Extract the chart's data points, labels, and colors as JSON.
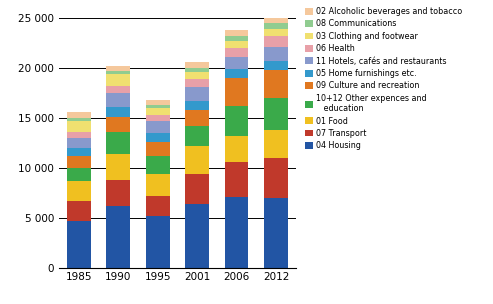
{
  "years": [
    "1985",
    "1990",
    "1995",
    "2001",
    "2006",
    "2012"
  ],
  "categories": [
    "04 Housing",
    "07 Transport",
    "01 Food",
    "10+12 Other expences and education",
    "09 Culture and recreation",
    "05 Home furnishings etc.",
    "11 Hotels, cafes and restaurants",
    "06 Health",
    "03 Clothing and footwear",
    "08 Communications",
    "02 Alcoholic beverages and tobacco"
  ],
  "legend_labels": [
    "02 Alcoholic beverages and tobacco",
    "08 Communications",
    "03 Clothing and footwear",
    "06 Health",
    "11 Hotels, cafés and restaurants",
    "05 Home furnishings etc.",
    "09 Culture and recreation",
    "10+12 Other expences and\n   education",
    "01 Food",
    "07 Transport",
    "04 Housing"
  ],
  "colors": [
    "#2255a4",
    "#c0392b",
    "#f0c020",
    "#3aaa4a",
    "#e07820",
    "#3399cc",
    "#8899cc",
    "#e8a0a8",
    "#f0e070",
    "#90cc90",
    "#f5c89c"
  ],
  "data": {
    "04 Housing": [
      4700,
      6200,
      5200,
      6400,
      7100,
      7000
    ],
    "07 Transport": [
      2000,
      2600,
      2000,
      3000,
      3500,
      4000
    ],
    "01 Food": [
      2000,
      2600,
      2200,
      2800,
      2600,
      2800
    ],
    "10+12 Other expences and education": [
      1300,
      2200,
      1800,
      2000,
      3000,
      3200
    ],
    "09 Culture and recreation": [
      1200,
      1500,
      1400,
      1600,
      2800,
      2800
    ],
    "05 Home furnishings etc.": [
      800,
      1000,
      900,
      900,
      900,
      900
    ],
    "11 Hotels, cafes and restaurants": [
      1000,
      1400,
      1200,
      1400,
      1200,
      1400
    ],
    "06 Health": [
      600,
      700,
      600,
      800,
      900,
      1100
    ],
    "03 Clothing and footwear": [
      1100,
      1200,
      700,
      700,
      700,
      700
    ],
    "08 Communications": [
      300,
      300,
      300,
      400,
      500,
      600
    ],
    "02 Alcoholic beverages and tobacco": [
      600,
      500,
      500,
      600,
      600,
      600
    ]
  },
  "ylim": [
    0,
    25000
  ],
  "yticks": [
    0,
    5000,
    10000,
    15000,
    20000,
    25000
  ],
  "ytick_labels": [
    "0",
    "5 000",
    "10 000",
    "15 000",
    "20 000",
    "25 000"
  ],
  "bgcolor": "#ffffff",
  "grid_color": "#000000"
}
